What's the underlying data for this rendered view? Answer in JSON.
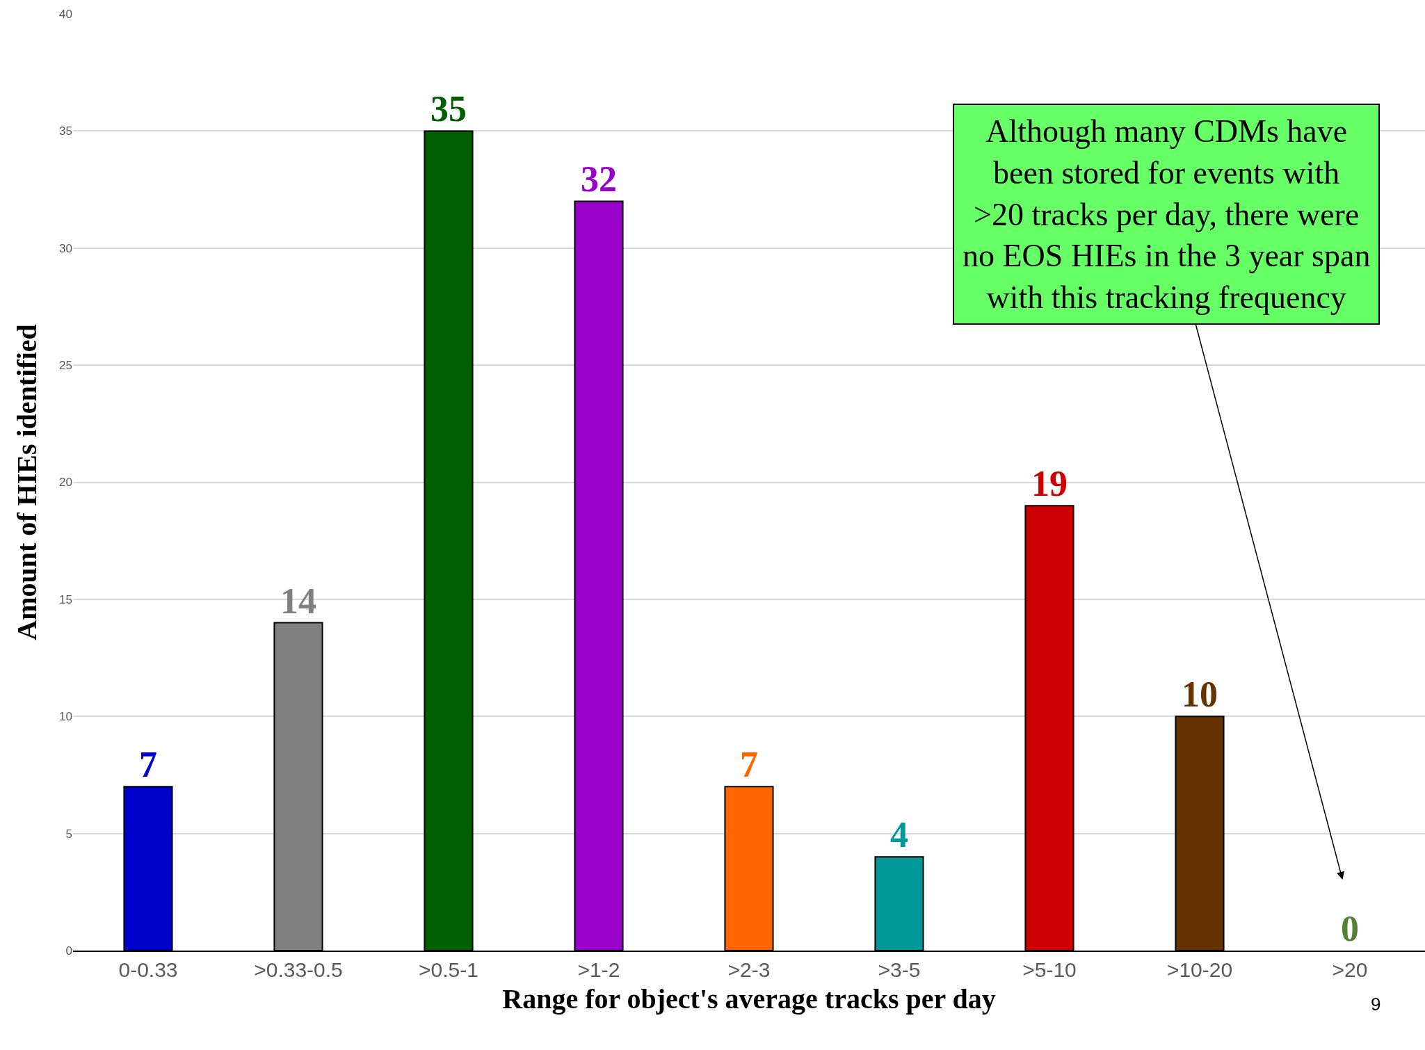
{
  "chart_data": {
    "type": "bar",
    "categories": [
      "0-0.33",
      ">0.33-0.5",
      ">0.5-1",
      ">1-2",
      ">2-3",
      ">3-5",
      ">5-10",
      ">10-20",
      ">20"
    ],
    "values": [
      7,
      14,
      35,
      32,
      7,
      4,
      19,
      10,
      0
    ],
    "colors": [
      "#0000cc",
      "#808080",
      "#006000",
      "#9900cc",
      "#ff6600",
      "#009999",
      "#cc0000",
      "#663300",
      "#548235"
    ],
    "xlabel": "Range for object's average tracks per day",
    "ylabel": "Amount of HIEs identified",
    "ylim": [
      0,
      40
    ],
    "yticks": [
      0,
      5,
      10,
      15,
      20,
      25,
      30,
      35,
      40
    ],
    "grid": "y",
    "data_labels": true,
    "annotations": [
      "Although many CDMs have\nbeen stored for events with\n>20 tracks per day, there were\nno EOS HIEs in the 3 year span\nwith this tracking frequency",
      "9"
    ]
  }
}
